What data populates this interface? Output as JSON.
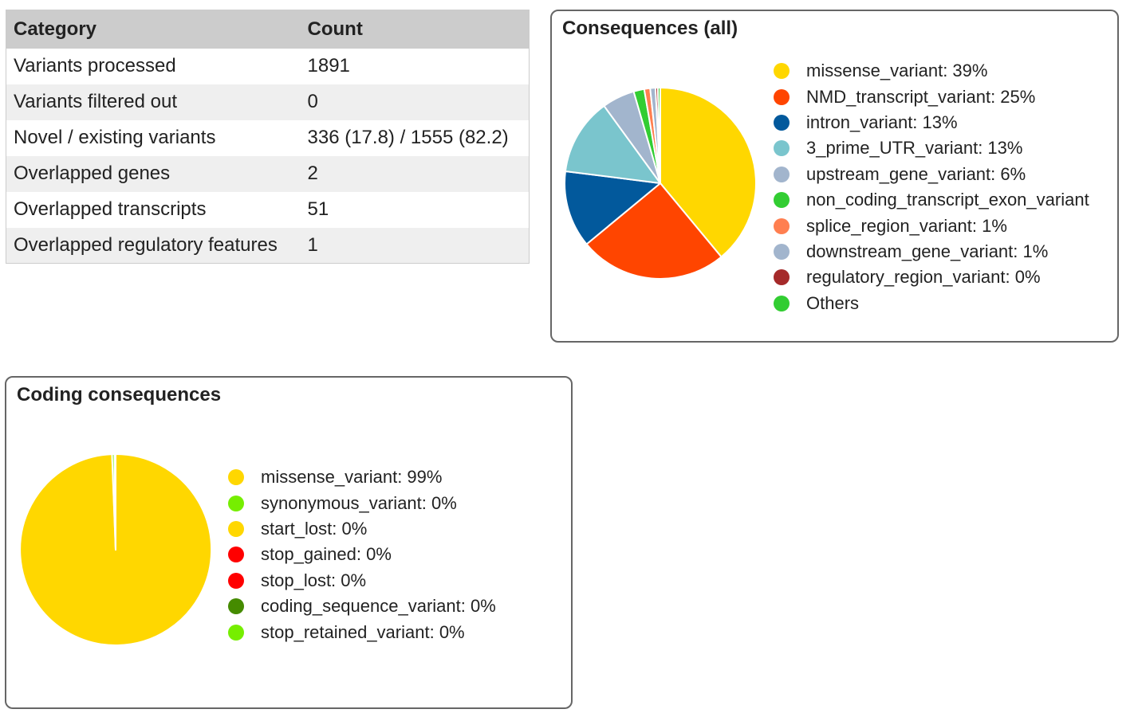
{
  "summary": {
    "headers": [
      "Category",
      "Count"
    ],
    "rows": [
      [
        "Variants processed",
        "1891"
      ],
      [
        "Variants filtered out",
        "0"
      ],
      [
        "Novel / existing variants",
        "336 (17.8) / 1555 (82.2)"
      ],
      [
        "Overlapped genes",
        "2"
      ],
      [
        "Overlapped transcripts",
        "51"
      ],
      [
        "Overlapped regulatory features",
        "1"
      ]
    ]
  },
  "chart_data": [
    {
      "type": "pie",
      "title": "Consequences (all)",
      "slices": [
        {
          "label": "missense_variant: 39%",
          "value": 39,
          "color": "#FFD700"
        },
        {
          "label": "NMD_transcript_variant: 25%",
          "value": 25,
          "color": "#FF4500"
        },
        {
          "label": "intron_variant: 13%",
          "value": 13,
          "color": "#02599C"
        },
        {
          "label": "3_prime_UTR_variant: 13%",
          "value": 13,
          "color": "#7AC5CD"
        },
        {
          "label": "upstream_gene_variant: 6%",
          "value": 5.5,
          "color": "#A2B5CD"
        },
        {
          "label": "non_coding_transcript_exon_variant",
          "value": 1.8,
          "color": "#32CD32"
        },
        {
          "label": "splice_region_variant: 1%",
          "value": 1,
          "color": "#FF7F50"
        },
        {
          "label": "downstream_gene_variant: 1%",
          "value": 0.9,
          "color": "#A2B5CD"
        },
        {
          "label": "regulatory_region_variant: 0%",
          "value": 0.4,
          "color": "#A52A2A"
        },
        {
          "label": "Others",
          "value": 0.4,
          "color": "#32CD32"
        }
      ]
    },
    {
      "type": "pie",
      "title": "Coding consequences",
      "slices": [
        {
          "label": "missense_variant: 99%",
          "value": 99.4,
          "color": "#FFD700"
        },
        {
          "label": "synonymous_variant: 0%",
          "value": 0.4,
          "color": "#76EE00"
        },
        {
          "label": "start_lost: 0%",
          "value": 0.1,
          "color": "#FFD700"
        },
        {
          "label": "stop_gained: 0%",
          "value": 0.05,
          "color": "#FF0000"
        },
        {
          "label": "stop_lost: 0%",
          "value": 0.03,
          "color": "#FF0000"
        },
        {
          "label": "coding_sequence_variant: 0%",
          "value": 0.01,
          "color": "#458B00"
        },
        {
          "label": "stop_retained_variant: 0%",
          "value": 0.01,
          "color": "#76EE00"
        }
      ]
    }
  ]
}
